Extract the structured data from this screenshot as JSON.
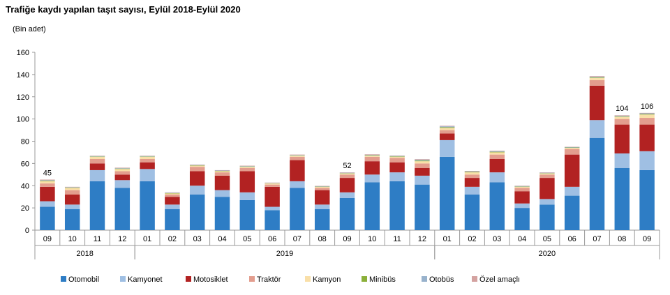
{
  "chart_data": {
    "type": "bar",
    "stacked": true,
    "title": "Trafiğe kaydı yapılan taşıt sayısı, Eylül 2018-Eylül 2020",
    "ylabel": "(Bin adet)",
    "xlabel": "",
    "ylim": [
      0,
      160
    ],
    "yticks": [
      0,
      20,
      40,
      60,
      80,
      100,
      120,
      140,
      160
    ],
    "grid": false,
    "legend_position": "bottom",
    "categories": [
      "09",
      "10",
      "11",
      "12",
      "01",
      "02",
      "03",
      "04",
      "05",
      "06",
      "07",
      "08",
      "09",
      "10",
      "11",
      "12",
      "01",
      "02",
      "03",
      "04",
      "05",
      "06",
      "07",
      "08",
      "09"
    ],
    "groups": [
      {
        "label": "2018",
        "start": 0,
        "end": 3
      },
      {
        "label": "2019",
        "start": 4,
        "end": 15
      },
      {
        "label": "2020",
        "start": 16,
        "end": 24
      }
    ],
    "series": [
      {
        "name": "Otomobil",
        "color": "#2e7dc5",
        "values": [
          21,
          19,
          44,
          38,
          44,
          19,
          32,
          30,
          27,
          18,
          38,
          19,
          29,
          43,
          44,
          41,
          66,
          32,
          43,
          20,
          23,
          31,
          83,
          56,
          54
        ]
      },
      {
        "name": "Kamyonet",
        "color": "#9fbfe3",
        "values": [
          5,
          4,
          10,
          7,
          11,
          4,
          8,
          6,
          7,
          3,
          6,
          4,
          5,
          7,
          8,
          8,
          15,
          7,
          9,
          4,
          5,
          8,
          16,
          13,
          17
        ]
      },
      {
        "name": "Motosiklet",
        "color": "#b22222",
        "values": [
          13,
          9,
          6,
          5,
          6,
          7,
          13,
          13,
          19,
          18,
          19,
          13,
          13,
          12,
          9,
          7,
          6,
          8,
          12,
          11,
          19,
          29,
          31,
          26,
          24
        ]
      },
      {
        "name": "Traktör",
        "color": "#e39d8e",
        "values": [
          3,
          4,
          4,
          3,
          3,
          2,
          4,
          3,
          3,
          2,
          3,
          2,
          3,
          4,
          4,
          4,
          3,
          3,
          4,
          3,
          3,
          5,
          5,
          5,
          6
        ]
      },
      {
        "name": "Kamyon",
        "color": "#f9dfa8",
        "values": [
          2,
          2,
          2,
          2,
          2,
          1,
          1,
          1,
          1,
          1,
          1,
          1,
          1,
          1,
          1,
          2,
          2,
          2,
          2,
          1,
          1,
          1,
          2,
          2,
          3
        ]
      },
      {
        "name": "Minibüs",
        "color": "#8bb03a",
        "values": [
          0.5,
          0.3,
          0.3,
          0.4,
          0.3,
          0.3,
          0.3,
          0.3,
          0.3,
          0.2,
          0.3,
          0.2,
          0.3,
          0.4,
          0.4,
          0.6,
          0.6,
          0.4,
          0.5,
          0.3,
          0.3,
          0.3,
          0.5,
          0.4,
          0.5
        ]
      },
      {
        "name": "Otobüs",
        "color": "#98b2cc",
        "values": [
          0.5,
          0.4,
          0.4,
          0.4,
          0.4,
          0.4,
          0.4,
          0.4,
          0.4,
          0.3,
          0.4,
          0.3,
          0.4,
          0.5,
          0.4,
          0.8,
          0.8,
          0.5,
          0.6,
          0.4,
          0.4,
          0.4,
          0.6,
          0.6,
          0.6
        ]
      },
      {
        "name": "Özel amaçlı",
        "color": "#d4a2a0",
        "values": [
          0.5,
          0.3,
          0.3,
          0.4,
          0.3,
          0.3,
          0.3,
          0.3,
          0.3,
          0.3,
          0.3,
          0.3,
          0.3,
          0.4,
          0.3,
          0.5,
          0.5,
          0.4,
          0.4,
          0.3,
          0.3,
          0.3,
          0.5,
          0.4,
          0.4
        ]
      }
    ],
    "annotations": [
      {
        "index": 0,
        "text": "45"
      },
      {
        "index": 12,
        "text": "52"
      },
      {
        "index": 23,
        "text": "104"
      },
      {
        "index": 24,
        "text": "106"
      }
    ]
  }
}
